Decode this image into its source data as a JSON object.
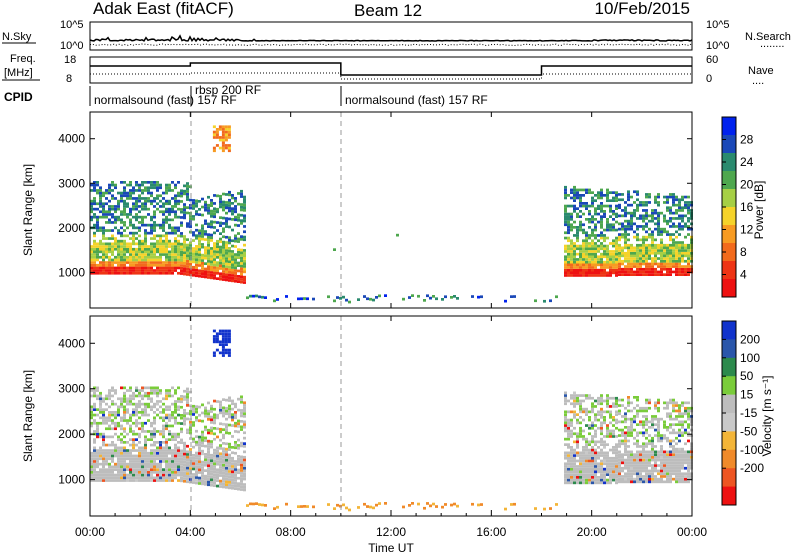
{
  "header": {
    "station": "Adak East (fitACF)",
    "beam": "Beam 12",
    "date": "10/Feb/2015"
  },
  "panels": {
    "nsky": {
      "left_label": "N.Sky",
      "left_ticks": [
        "10^5",
        "10^0"
      ],
      "right_ticks": [
        "10^5",
        "10^0"
      ],
      "right_label": "N.Search",
      "right_legend": "........"
    },
    "freq": {
      "left_label_1": "Freq.",
      "left_label_2": "[MHz]",
      "left_ticks": [
        "18",
        "8"
      ],
      "right_ticks": [
        "60",
        "0"
      ],
      "right_label": "Nave",
      "right_legend": "....",
      "cpid_label": "CPID"
    },
    "cpid_segments": [
      {
        "name": "normalsound (fast) 157 RF",
        "start_h": 0,
        "end_h": 4
      },
      {
        "name": "rbsp 200 RF",
        "start_h": 4,
        "end_h": 10
      },
      {
        "name": "normalsound (fast) 157 RF",
        "start_h": 10,
        "end_h": 24
      }
    ]
  },
  "chart_data": [
    {
      "type": "heatmap",
      "name": "power",
      "ylabel": "Slant Range [km]",
      "yticks": [
        1000,
        2000,
        3000,
        4000
      ],
      "ylim": [
        200,
        4600
      ],
      "colorbar": {
        "label": "Power [dB]",
        "ticks": [
          4,
          8,
          12,
          16,
          20,
          24,
          28
        ],
        "colors": [
          "#0022ee",
          "#1a48b8",
          "#2a8a6e",
          "#4ea74e",
          "#a6cf45",
          "#f5d32a",
          "#f79b22",
          "#f26a1c",
          "#ee3415",
          "#ee1111"
        ]
      }
    },
    {
      "type": "heatmap",
      "name": "velocity",
      "ylabel": "Slant Range [km]",
      "yticks": [
        1000,
        2000,
        3000,
        4000
      ],
      "ylim": [
        200,
        4600
      ],
      "xlabel": "Time UT",
      "xticks": [
        "00:00",
        "04:00",
        "08:00",
        "12:00",
        "16:00",
        "20:00",
        "00:00"
      ],
      "xtick_hours": [
        0,
        4,
        8,
        12,
        16,
        20,
        24
      ],
      "colorbar": {
        "label": "Velocity [m s⁻¹]",
        "ticks": [
          "200",
          "100",
          "50",
          "15",
          "-15",
          "-50",
          "-100",
          "-200"
        ],
        "colors": [
          "#1133cc",
          "#2a56aa",
          "#2c8a4c",
          "#7acc3a",
          "#bdbdbd",
          "#c9c9c9",
          "#f3b538",
          "#f08a2a",
          "#ee5522",
          "#ee1111"
        ]
      }
    }
  ],
  "colors": {
    "ground_grey": "#bdbdbd",
    "echo_red": "#ee2211",
    "echo_blue": "#1a44b0"
  }
}
